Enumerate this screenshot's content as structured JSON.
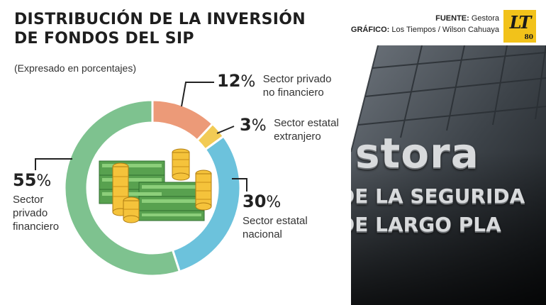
{
  "title_lines": [
    "DISTRIBUCIÓN DE LA INVERSIÓN",
    "DE FONDOS DEL SIP"
  ],
  "subtitle": "(Expresado en porcentajes)",
  "credits": {
    "source_label": "FUENTE:",
    "source_value": "Gestora",
    "graphic_label": "GRÁFICO:",
    "graphic_value": "Los Tiempos / Wilson Cahuaya"
  },
  "logo": {
    "text": "LT",
    "number": "80",
    "colors": {
      "bg": "#f2c21a"
    }
  },
  "photo": {
    "sign_lines": [
      "stora",
      "DE LA SEGURIDA",
      "DE LARGO PLA"
    ]
  },
  "icons": {
    "center": "money-stack-icon"
  },
  "colors": {
    "privado_financiero": "#7ec28f",
    "privado_no_financiero": "#ec9a78",
    "estatal_extranjero": "#f2cb55",
    "estatal_nacional": "#6cc2dc"
  },
  "chart_data": {
    "type": "pie",
    "donut": true,
    "title": "DISTRIBUCIÓN DE LA INVERSIÓN DE FONDOS DEL SIP",
    "subtitle": "(Expresado en porcentajes)",
    "unit": "%",
    "slices": [
      {
        "key": "privado_no_financiero",
        "value": 12,
        "label_lines": [
          "Sector privado",
          "no financiero"
        ]
      },
      {
        "key": "estatal_extranjero",
        "value": 3,
        "label_lines": [
          "Sector estatal",
          "extranjero"
        ]
      },
      {
        "key": "estatal_nacional",
        "value": 30,
        "label_lines": [
          "Sector estatal",
          "nacional"
        ]
      },
      {
        "key": "privado_financiero",
        "value": 55,
        "label_lines": [
          "Sector",
          "privado",
          "financiero"
        ]
      }
    ]
  }
}
